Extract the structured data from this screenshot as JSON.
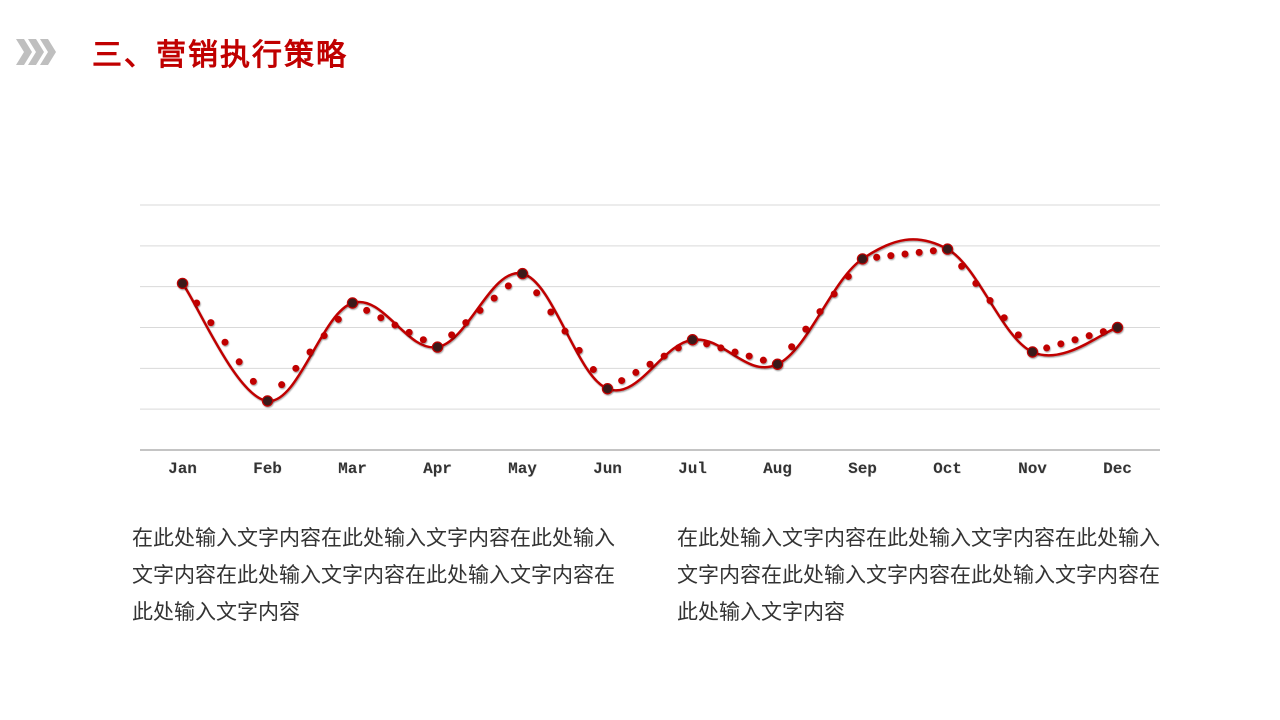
{
  "header": {
    "title": "三、营销执行策略",
    "title_color": "#c00000",
    "title_fontsize": 30,
    "chevron_color": "#bfbfbf"
  },
  "chart": {
    "type": "line",
    "categories": [
      "Jan",
      "Feb",
      "Mar",
      "Apr",
      "May",
      "Jun",
      "Jul",
      "Aug",
      "Sep",
      "Oct",
      "Nov",
      "Dec"
    ],
    "values": [
      68,
      20,
      60,
      42,
      72,
      25,
      45,
      35,
      78,
      82,
      40,
      50
    ],
    "line_color": "#c00000",
    "line_width": 2.5,
    "marker_fill": "#3a1a1a",
    "marker_stroke": "#c00000",
    "marker_radius": 4.5,
    "dot_trail_color": "#c00000",
    "dot_trail_radius": 3.5,
    "dot_shadow": "0 1px 1px rgba(0,0,0,0.25)",
    "ylim": [
      0,
      100
    ],
    "grid_color": "#d9d9d9",
    "grid_lines": 6,
    "axis_color": "#888888",
    "background_color": "#ffffff",
    "label_fontsize": 16,
    "label_color": "#333333",
    "label_font": "Courier New"
  },
  "text_left": "在此处输入文字内容在此处输入文字内容在此处输入文字内容在此处输入文字内容在此处输入文字内容在此处输入文字内容",
  "text_right": "在此处输入文字内容在此处输入文字内容在此处输入文字内容在此处输入文字内容在此处输入文字内容在此处输入文字内容",
  "text_fontsize": 21,
  "text_color": "#333333"
}
